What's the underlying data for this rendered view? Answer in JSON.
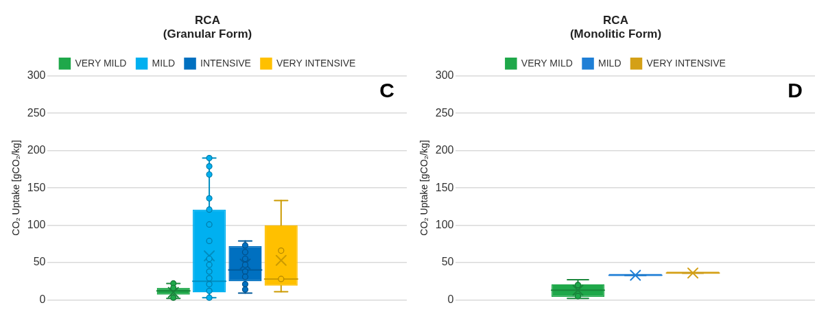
{
  "chart_data": [
    {
      "type": "box",
      "title": "RCA\n(Granular Form)",
      "ylabel": "CO₂ Uptake [gCO₂/kg]",
      "categories": [
        null
      ],
      "ylim": [
        0,
        300
      ],
      "yticks": [
        0,
        50,
        100,
        150,
        200,
        250,
        300
      ],
      "grid": "y",
      "legend": "top",
      "tick_labels": "y",
      "annotations": [
        "C"
      ],
      "series": [
        {
          "name": "VERY MILD",
          "color": "#1fa84a",
          "boxes": [
            {
              "low": 2,
              "q1": 7,
              "median": 12,
              "q3": 16,
              "high": 22,
              "mean": 10
            }
          ]
        },
        {
          "name": "MILD",
          "color": "#00b0f0",
          "boxes": [
            {
              "low": 3,
              "q1": 10,
              "median": 25,
              "q3": 121,
              "high": 190,
              "mean": 59
            }
          ]
        },
        {
          "name": "INTENSIVE",
          "color": "#0070c0",
          "boxes": [
            {
              "low": 9,
              "q1": 25,
              "median": 40,
              "q3": 72,
              "high": 79,
              "mean": 48
            }
          ]
        },
        {
          "name": "VERY INTENSIVE",
          "color": "#ffc000",
          "boxes": [
            {
              "low": 11,
              "q1": 19,
              "median": 28,
              "q3": 100,
              "high": 133,
              "mean": 53
            }
          ]
        },
        {
          "type": "scatter",
          "color": "#1fa84a",
          "x": [
            null,
            null,
            null
          ],
          "values": [
            22,
            16,
            3
          ]
        },
        {
          "type": "scatter",
          "color": "#00b0f0",
          "x": [
            null,
            null,
            null,
            null,
            null,
            null,
            null,
            null,
            null,
            null,
            null,
            null,
            null,
            null
          ],
          "values": [
            190,
            179,
            168,
            136,
            121,
            101,
            79,
            55,
            47,
            38,
            29,
            21,
            12,
            3
          ]
        },
        {
          "type": "scatter",
          "color": "#0070c0",
          "x": [
            null,
            null,
            null,
            null,
            null,
            null,
            null,
            null
          ],
          "values": [
            73,
            64,
            55,
            47,
            38,
            31,
            21,
            14
          ]
        },
        {
          "type": "scatter",
          "color": "#ffc000",
          "x": [
            null,
            null
          ],
          "values": [
            66,
            28
          ]
        }
      ]
    },
    {
      "type": "box",
      "title": "RCA\n(Monolitic Form)",
      "ylabel": "CO₂ Uptake [gCO₂/kg]",
      "categories": [
        null
      ],
      "ylim": [
        0,
        300
      ],
      "yticks": [
        0,
        50,
        100,
        150,
        200,
        250,
        300
      ],
      "grid": "y",
      "legend": "top",
      "tick_labels": "y",
      "annotations": [
        "D"
      ],
      "series": [
        {
          "name": "VERY MILD",
          "color": "#1fa84a",
          "boxes": [
            {
              "low": 2,
              "q1": 4,
              "median": 13,
              "q3": 21,
              "high": 27,
              "mean": 13
            }
          ]
        },
        {
          "name": "MILD",
          "color": "#1f7fd6",
          "boxes": [
            {
              "low": 33,
              "q1": 33,
              "median": 33,
              "q3": 33,
              "high": 33,
              "mean": 33
            }
          ]
        },
        {
          "name": "VERY INTENSIVE",
          "color": "#d4a017",
          "boxes": [
            {
              "low": 36,
              "q1": 36,
              "median": 36,
              "q3": 36,
              "high": 36,
              "mean": 36
            }
          ]
        },
        {
          "type": "scatter",
          "color": "#1fa84a",
          "x": [
            null,
            null
          ],
          "values": [
            20,
            5
          ]
        }
      ]
    }
  ]
}
